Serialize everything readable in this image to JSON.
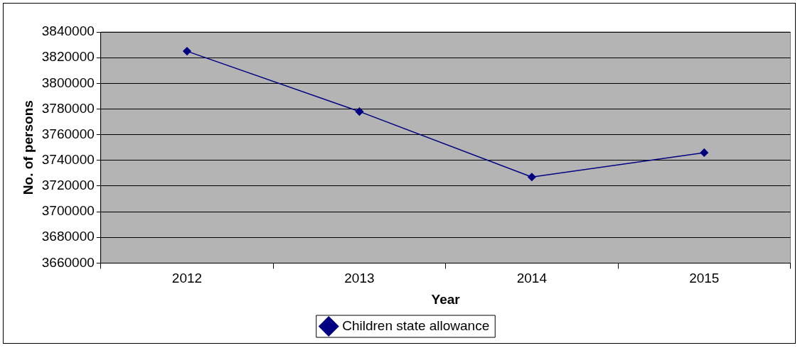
{
  "chart_data": {
    "type": "line",
    "xlabel": "Year",
    "ylabel": "No. of persons",
    "categories": [
      "2012",
      "2013",
      "2014",
      "2015"
    ],
    "series": [
      {
        "name": "Children state allowance",
        "color": "#000080",
        "values": [
          3825000,
          3778000,
          3727000,
          3746000
        ]
      }
    ],
    "ylim": [
      3660000,
      3840000
    ],
    "yticks": [
      3660000,
      3680000,
      3700000,
      3720000,
      3740000,
      3760000,
      3780000,
      3800000,
      3820000,
      3840000
    ],
    "grid": "y",
    "legend": "bottom",
    "marker": "diamond",
    "line_style": "solid"
  }
}
